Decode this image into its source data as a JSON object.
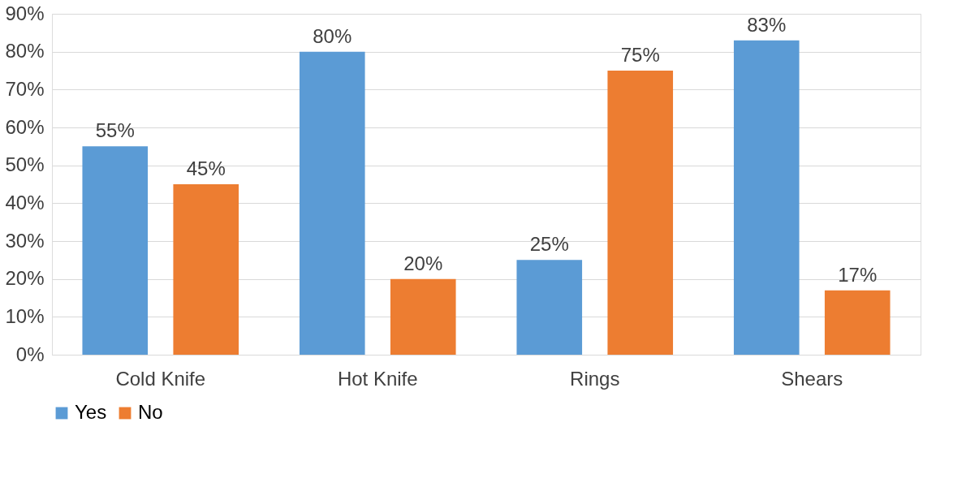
{
  "chart_data": {
    "type": "bar",
    "categories": [
      "Cold Knife",
      "Hot Knife",
      "Rings",
      "Shears"
    ],
    "series": [
      {
        "name": "Yes",
        "color": "#5b9bd5",
        "values": [
          55,
          80,
          25,
          83
        ],
        "value_labels": [
          "55%",
          "80%",
          "25%",
          "83%"
        ]
      },
      {
        "name": "No",
        "color": "#ed7d31",
        "values": [
          45,
          20,
          75,
          17
        ],
        "value_labels": [
          "45%",
          "20%",
          "75%",
          "17%"
        ]
      }
    ],
    "ylim": [
      0,
      90
    ],
    "yticks": [
      {
        "value": 0,
        "label": "0%"
      },
      {
        "value": 10,
        "label": "10%"
      },
      {
        "value": 20,
        "label": "20%"
      },
      {
        "value": 30,
        "label": "30%"
      },
      {
        "value": 40,
        "label": "40%"
      },
      {
        "value": 50,
        "label": "50%"
      },
      {
        "value": 60,
        "label": "60%"
      },
      {
        "value": 70,
        "label": "70%"
      },
      {
        "value": 80,
        "label": "80%"
      },
      {
        "value": 90,
        "label": "90%"
      }
    ],
    "grid": "y",
    "legend": "bottom"
  }
}
